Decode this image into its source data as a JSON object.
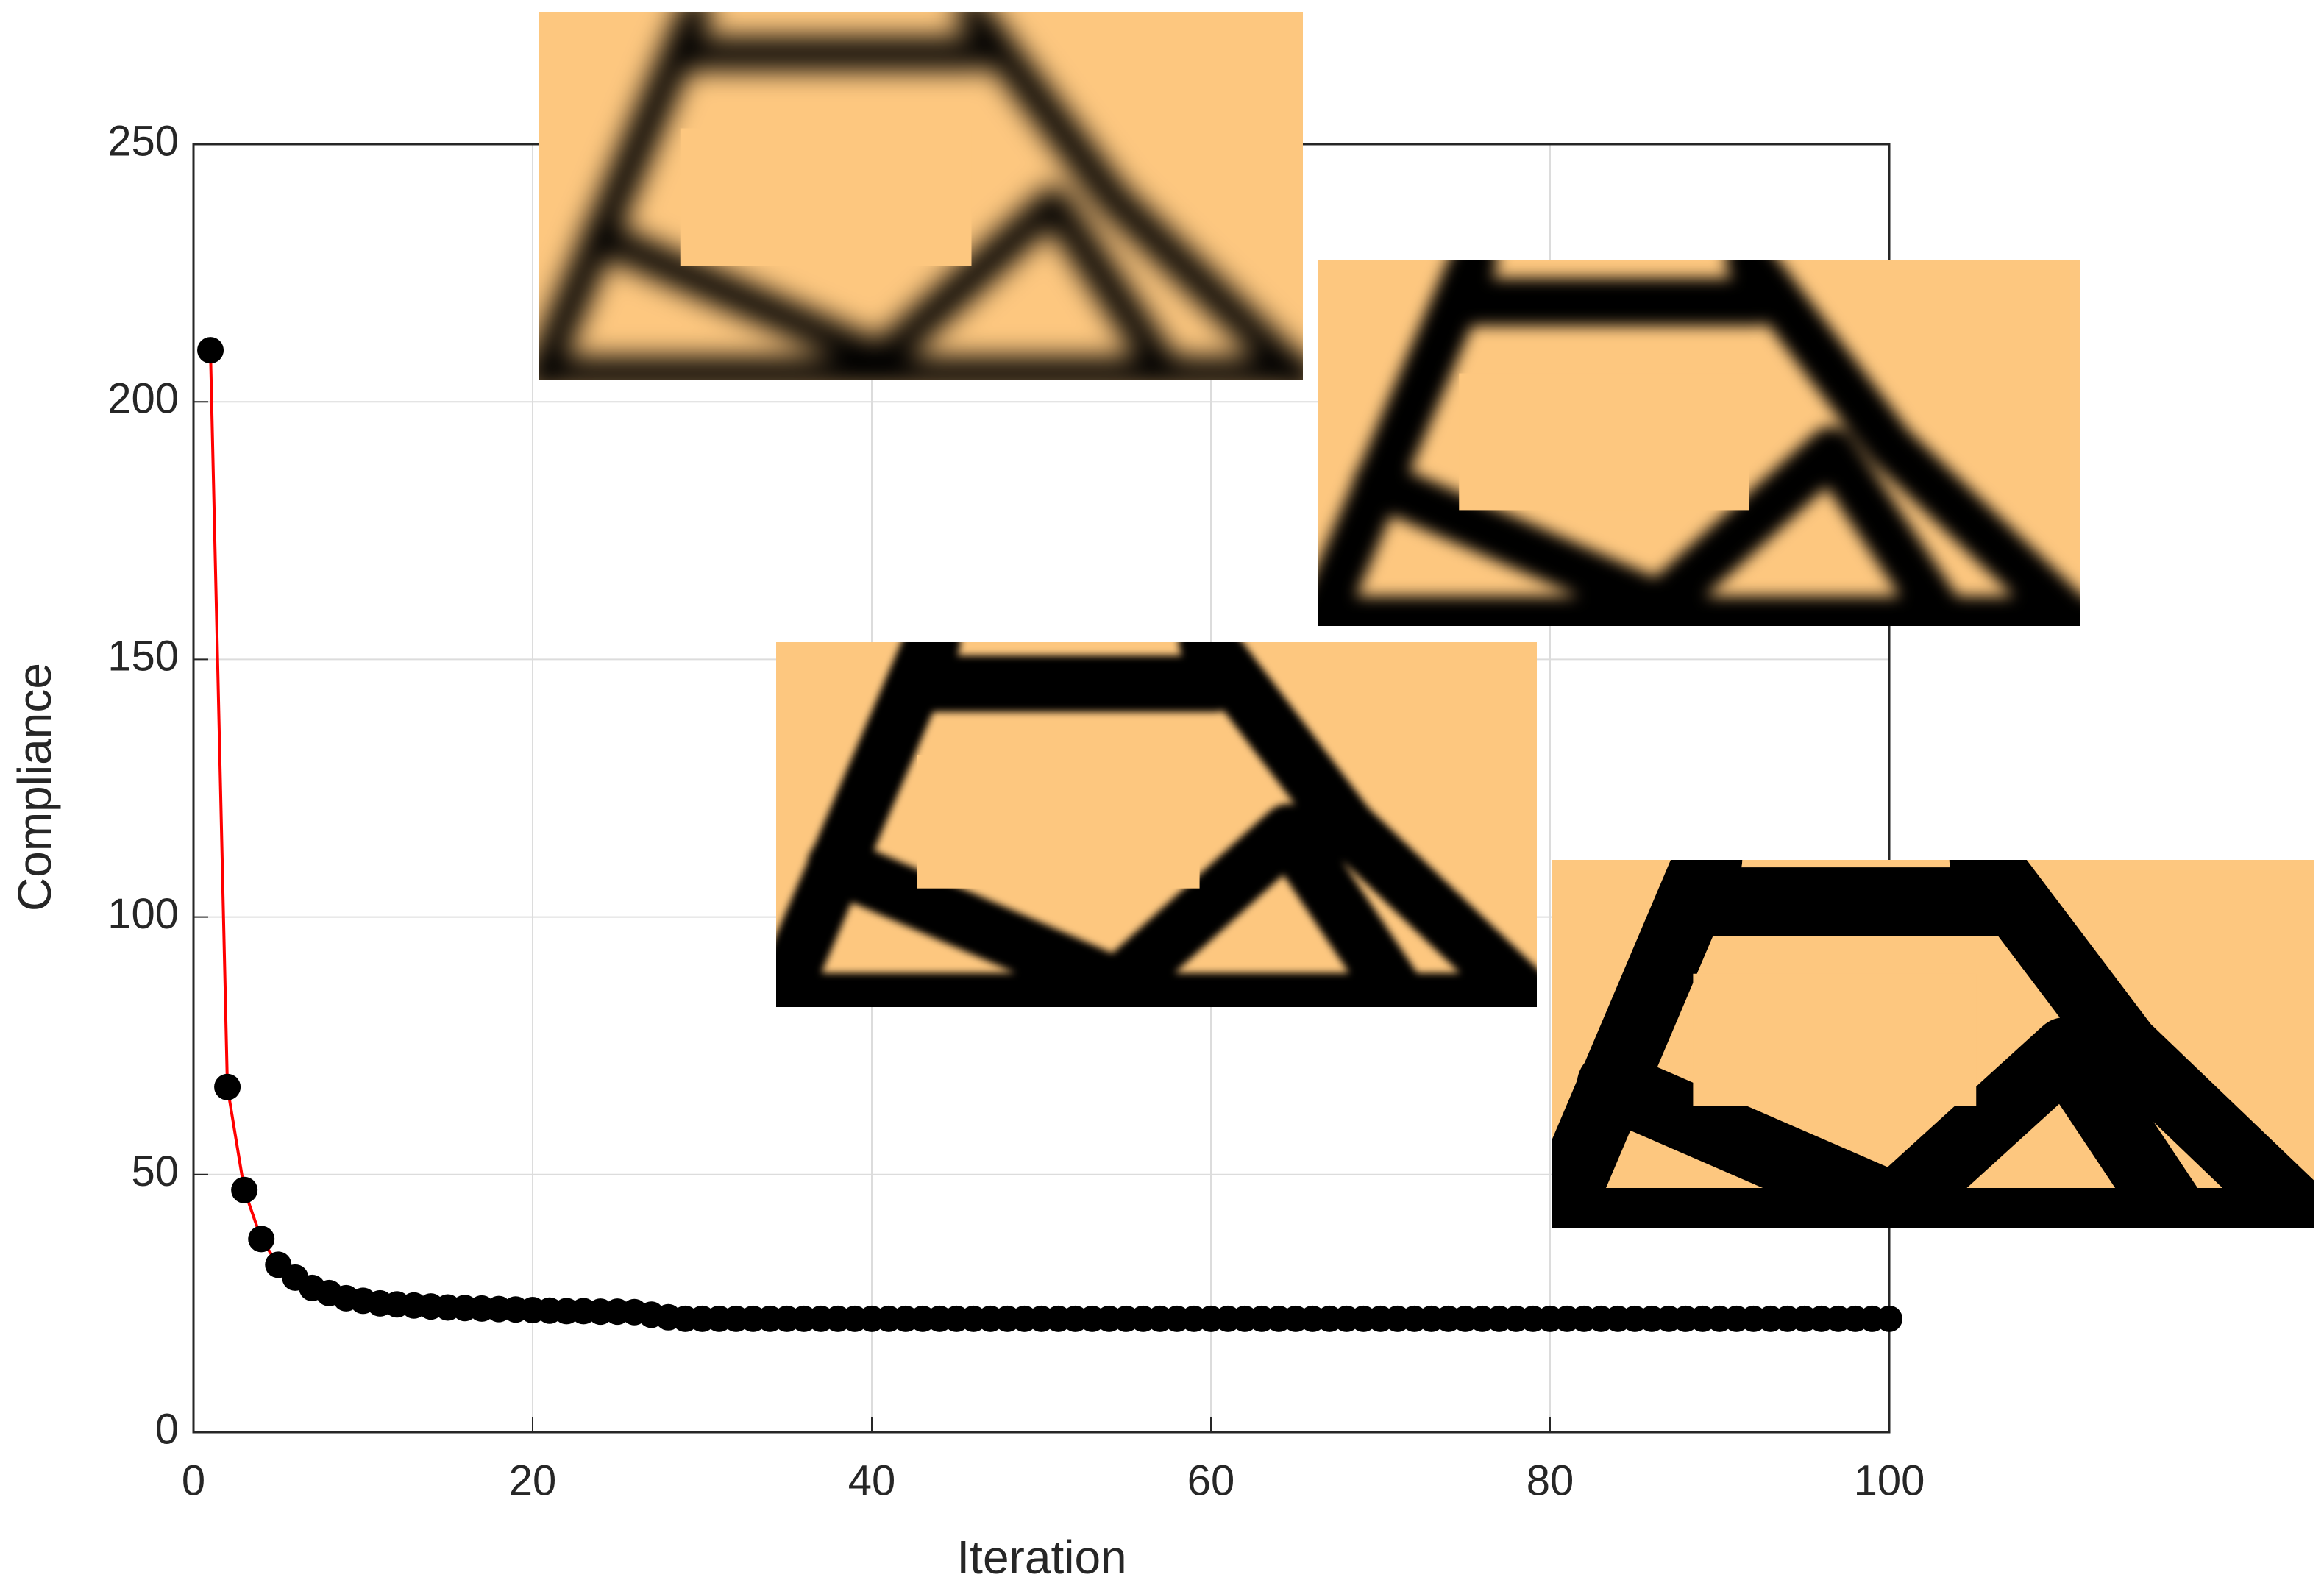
{
  "chart_data": {
    "type": "line",
    "xlabel": "Iteration",
    "ylabel": "Compliance",
    "x": [
      1,
      2,
      3,
      4,
      5,
      6,
      7,
      8,
      9,
      10,
      11,
      12,
      13,
      14,
      15,
      16,
      17,
      18,
      19,
      20,
      21,
      22,
      23,
      24,
      25,
      26,
      27,
      28,
      29,
      30,
      31,
      32,
      33,
      34,
      35,
      36,
      37,
      38,
      39,
      40,
      41,
      42,
      43,
      44,
      45,
      46,
      47,
      48,
      49,
      50,
      51,
      52,
      53,
      54,
      55,
      56,
      57,
      58,
      59,
      60,
      61,
      62,
      63,
      64,
      65,
      66,
      67,
      68,
      69,
      70,
      71,
      72,
      73,
      74,
      75,
      76,
      77,
      78,
      79,
      80,
      81,
      82,
      83,
      84,
      85,
      86,
      87,
      88,
      89,
      90,
      91,
      92,
      93,
      94,
      95,
      96,
      97,
      98,
      99,
      100
    ],
    "series": [
      {
        "color": "#ff0000",
        "marker_color": "#000000",
        "values": [
          210,
          67,
          47,
          37.5,
          32.5,
          30,
          28,
          27,
          26,
          25.5,
          25,
          24.8,
          24.6,
          24.4,
          24.2,
          24.1,
          24,
          23.9,
          23.8,
          23.7,
          23.6,
          23.5,
          23.5,
          23.4,
          23.4,
          23.3,
          22.8,
          22.3,
          22,
          22,
          22,
          22,
          22,
          22,
          22,
          22,
          22,
          22,
          22,
          22,
          22,
          22,
          22,
          22,
          22,
          22,
          22,
          22,
          22,
          22,
          22,
          22,
          22,
          22,
          22,
          22,
          22,
          22,
          22,
          22,
          22,
          22,
          22,
          22,
          22,
          22,
          22,
          22,
          22,
          22,
          22,
          22,
          22,
          22,
          22,
          22,
          22,
          22,
          22,
          22,
          22,
          22,
          22,
          22,
          22,
          22,
          22,
          22,
          22,
          22,
          22,
          22,
          22,
          22,
          22,
          22,
          22,
          22,
          22,
          22
        ]
      }
    ],
    "xlim": [
      0,
      100
    ],
    "xticks": [
      0,
      20,
      40,
      60,
      80,
      100
    ],
    "ylim": [
      0,
      250
    ],
    "yticks": [
      0,
      50,
      100,
      150,
      200,
      250
    ],
    "grid": true
  }
}
